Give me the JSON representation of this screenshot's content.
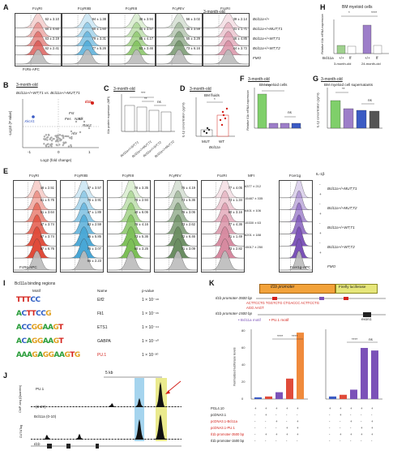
{
  "panel_A": {
    "letter": "A",
    "titles": [
      "FcγRI",
      "FcγRIIB",
      "FcγRIII",
      "FcγRIV",
      "FcεRI"
    ],
    "xlabel": "FcRs-APC",
    "age": "3-month-old",
    "rows": [
      "Bcl11a+/+",
      "Bcl11a+/+MUT;T1",
      "Bcl11a+/+WT;T1",
      "Bcl11a+/+WT;T2",
      "FMO"
    ],
    "colors": [
      "#d9534f",
      "#49a7d6",
      "#7cbf57",
      "#6b8e62",
      "#d78aa0"
    ],
    "stats": [
      [
        "62 ± 3.10",
        "60 ± 4.60",
        "63 ± 2.19",
        "62 ± 2.41"
      ],
      [
        "94 ± 1.38",
        "60 ± 1.60",
        "79 ± 3.31",
        "77 ± 5.26"
      ],
      [
        "36 ± 3.94",
        "41 ± 3.57",
        "85 ± 4.17",
        "63 ± 3.46"
      ],
      [
        "56 ± 3.02",
        "35 ± 3.59",
        "55 ± 3.29",
        "73 ± 6.16"
      ],
      [
        "39 ± 2.14",
        "31 ± 1.71",
        "46 ± 4.85",
        "44 ± 3.72"
      ]
    ]
  },
  "panel_B": {
    "letter": "B",
    "age": "3-month-old",
    "title": "Bcl11a+/+WT;T1 vs. Bcl11a+/+MUT;T1",
    "xlabel": "Log2 (fold change)",
    "ylabel": "-Log10 (P value)",
    "labels": [
      "Il1b",
      "Fst",
      "Fes",
      "Nadk",
      "Rac2",
      "Ahr",
      "Xkcrl1"
    ],
    "xticks": [
      "-1",
      "0",
      "1"
    ],
    "yticks": [
      "0",
      "1",
      "2",
      "3"
    ]
  },
  "panel_C": {
    "letter": "C",
    "age": "3-month-old",
    "ylabel": "Il1b protein expression (MFI)",
    "sig": [
      "***",
      "**",
      "ns"
    ],
    "groups": [
      "Bcl11a+/+WT;T1",
      "Bcl11a+/+MUT;T1",
      "Bcl11a+/+WT;T2",
      "Bcl11a+/+MUT;T2"
    ]
  },
  "panel_D": {
    "letter": "D",
    "age": "3-month-old",
    "title": "BM fluids",
    "ylabel": "IL-1β concentration (pg/ml)",
    "sig": "*",
    "groups": [
      "MUT",
      "WT"
    ],
    "xlabel": "Bcl11a"
  },
  "panel_E": {
    "letter": "E",
    "titles": [
      "FcγRI",
      "FcγRIIB",
      "FcγRIII",
      "FcγRIV",
      "FcεRI",
      "MFI",
      "Fcer1g",
      "IL-1β"
    ],
    "xlabel_left": "FcRs-APC",
    "xlabel_right": "Fcer1g-APC",
    "rows": [
      "Bcl11a+/+MUT;T1",
      "Bcl11a+/+MUT;T2",
      "Bcl11a+/+WT;T1",
      "Bcl11a+/+WT;T2",
      "FMO"
    ],
    "il_signs": [
      "-",
      "+",
      "-",
      "+",
      "-",
      "+",
      "-",
      "+"
    ],
    "col_stats": [
      [
        "48 ± 2.51",
        "61 ± 0.76",
        "51 ± 3.64",
        "47 ± 3.74",
        "67 ± 3.74",
        "87 ± 6.76"
      ],
      [
        "47 ± 3.57",
        "76 ± 3.91",
        "47 ± 1.89",
        "83 ± 2.59",
        "45 ± 5.85",
        "75 ± 3.07",
        "65 ± 2.23"
      ],
      [
        "78 ± 3.35",
        "78 ± 2.94",
        "40 ± 6.06",
        "76 ± 4.16",
        "73 ± 5.36",
        "60 ± 3.25"
      ],
      [
        "75 ± 4.19",
        "73 ± 5.36",
        "76 ± 3.06",
        "73 ± 2.62",
        "72 ± 6.46",
        "71 ± 3.09"
      ],
      [
        "77 ± 4.05",
        "73 ± 1.34",
        "60 ± 3.16",
        "77 ± 4.36",
        "71 ± 1.49",
        "73 ± 2.82"
      ],
      [
        "6377 ± 212",
        "15487 ± 335",
        "6401 ± 106",
        "15330 ± 63",
        "6201 ± 188",
        "15017 ± 250"
      ]
    ]
  },
  "panel_F": {
    "letter": "F",
    "age": "3-month-old",
    "title": "BM myeloid cells",
    "ylabel": "Relative Il1b mRNA expression",
    "sig": [
      "****",
      "ns"
    ]
  },
  "panel_G": {
    "letter": "G",
    "age": "3-month-old",
    "title": "BM myeloid cell supernatants",
    "ylabel": "IL-1β concentration (pg/ml)",
    "sig": [
      "**",
      "ns"
    ]
  },
  "panel_H": {
    "letter": "H",
    "title": "BM myeloid cells",
    "ylabel": "Relative Il1b mRNA expression",
    "sig": [
      "*",
      "****"
    ],
    "xlabels": [
      "Bcl11a",
      "+/+",
      "ff",
      "+/+",
      "ff"
    ],
    "ages": [
      "3-month-old",
      "24-month-old"
    ]
  },
  "panel_I": {
    "letter": "I",
    "title": "Bcl11a binding regions",
    "headers": [
      "Motif",
      "Name",
      "p-value"
    ],
    "motifs": [
      {
        "seq": "TTTCC",
        "name": "Elf2",
        "p": "1 × 10⁻⁴⁸"
      },
      {
        "seq": "ACTTCCG",
        "name": "Fli1",
        "p": "1 × 10⁻⁴⁶"
      },
      {
        "seq": "ACCGGAAGT",
        "name": "ETS1",
        "p": "1 × 10⁻⁴⁴"
      },
      {
        "seq": "ACAGGAAGT",
        "name": "GABPA",
        "p": "1 × 10⁻⁴⁰"
      },
      {
        "seq": "AAAGAGGAAGTG",
        "name": "PU.1",
        "p": "1 × 10⁻³⁰"
      }
    ]
  },
  "panel_J": {
    "letter": "J",
    "track1": "PU.1",
    "track1_scale": "(0-27)",
    "track2": "Bcl11a (0-10)",
    "ylabel1": "ChIP-seq (Quanfen)",
    "ylabel2": "CUT&Tag",
    "scale": "5 kb",
    "gene": "Il1b"
  },
  "panel_K": {
    "letter": "K",
    "promoter_label": "Il1b promoter-3500 bp",
    "promoter_box": "Il1b promoter",
    "luciferase_box": "Firefly luciferase",
    "seq_top": "ACTTCCTG TGGTCTG CTGACCC ACTTCCTG",
    "seq_mut": "AGG AAGT",
    "promoter_1500": "Il1b promoter-1500 bp",
    "legend_bcl": "• Bcl11a motif",
    "legend_pu": "• PU.1 motif",
    "exon": "exon1",
    "ylabel": "Normalized luciferase levels",
    "rows": [
      "PGL4.10",
      "pcDNA3.1",
      "pcDNA3.1-Bcl11a",
      "pcDNA3.1-PU.1",
      "Il1b promoter-3500 bp",
      "Il1b promoter-1500 bp"
    ],
    "chart1": {
      "values": [
        2,
        3,
        8,
        24,
        78
      ],
      "colors": [
        "#3b5bc4",
        "#e04b3a",
        "#7b52b8",
        "#e04b3a",
        "#f08a3c"
      ]
    },
    "chart2": {
      "values": [
        3,
        5,
        11,
        60,
        57
      ],
      "colors": [
        "#3b5bc4",
        "#e04b3a",
        "#7b52b8",
        "#7b52b8",
        "#7b52b8"
      ]
    },
    "sig1": [
      "****",
      "****"
    ],
    "sig2": [
      "****",
      "ns"
    ],
    "yticks": [
      "0",
      "20",
      "40",
      "60",
      "80"
    ]
  }
}
